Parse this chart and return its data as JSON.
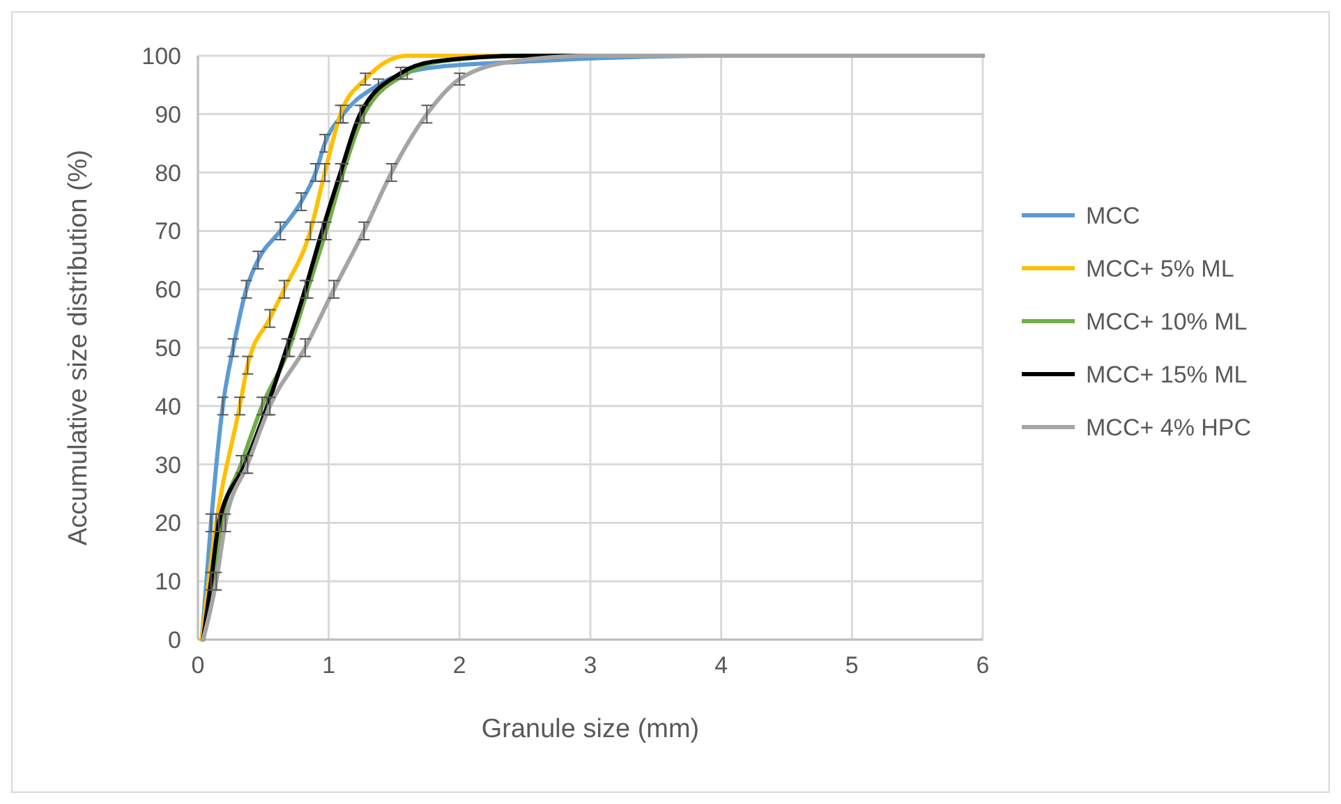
{
  "chart_data": {
    "type": "line",
    "xlabel": "Granule size (mm)",
    "ylabel": "Accumulative size distribution (%)",
    "xlim": [
      0,
      6
    ],
    "xticks": [
      0,
      1,
      2,
      3,
      4,
      5,
      6
    ],
    "ylim": [
      0,
      100
    ],
    "yticks": [
      0,
      10,
      20,
      30,
      40,
      50,
      60,
      70,
      80,
      90,
      100
    ],
    "grid": true,
    "legend": "right",
    "marker": "none",
    "line_style": "solid",
    "series": [
      {
        "name": "MCC",
        "color": "#5b9bd5",
        "x": [
          0.03,
          0.1,
          0.19,
          0.27,
          0.37,
          0.46,
          0.63,
          0.79,
          0.9,
          0.97,
          1.11,
          1.38,
          1.8,
          2.5,
          4,
          6
        ],
        "values": [
          0,
          20,
          40,
          50,
          60,
          65,
          70,
          75,
          80,
          85,
          90,
          95,
          98,
          99,
          100,
          100
        ],
        "errors": [
          null,
          1.5,
          1.5,
          1.5,
          1.5,
          1.5,
          1.5,
          1.5,
          1.5,
          1.5,
          1.5,
          1,
          null,
          null,
          null,
          null
        ]
      },
      {
        "name": "MCC+ 5% ML",
        "color": "#ffc000",
        "x": [
          0.03,
          0.14,
          0.32,
          0.38,
          0.55,
          0.66,
          0.86,
          0.97,
          1.09,
          1.28,
          1.6,
          6
        ],
        "values": [
          0,
          20,
          40,
          47,
          55,
          60,
          70,
          80,
          90,
          96,
          100,
          100
        ],
        "errors": [
          null,
          1.5,
          1.5,
          1.5,
          1.5,
          1.5,
          1.5,
          1.5,
          1.5,
          1,
          null,
          null
        ]
      },
      {
        "name": "MCC+ 10% ML",
        "color": "#70ad47",
        "x": [
          0.04,
          0.12,
          0.18,
          0.33,
          0.49,
          0.7,
          0.84,
          0.98,
          1.11,
          1.27,
          1.6,
          1.85,
          2.5,
          6
        ],
        "values": [
          0,
          10,
          20,
          30,
          40,
          50,
          60,
          70,
          80,
          90,
          97,
          99,
          100,
          100
        ],
        "errors": [
          null,
          1.5,
          1.5,
          1.5,
          1.5,
          1.5,
          1.5,
          1.5,
          1.5,
          1.5,
          1,
          null,
          null,
          null
        ]
      },
      {
        "name": "MCC+ 15% ML",
        "color": "#000000",
        "x": [
          0.04,
          0.1,
          0.16,
          0.36,
          0.53,
          0.68,
          0.82,
          0.95,
          1.09,
          1.24,
          1.55,
          1.8,
          2.5,
          6
        ],
        "values": [
          0,
          10,
          20,
          30,
          40,
          50,
          60,
          70,
          80,
          90,
          97,
          99,
          100,
          100
        ],
        "errors": [
          null,
          1.5,
          1.5,
          1.5,
          1.5,
          1.5,
          1.5,
          1.5,
          1.5,
          1.5,
          1,
          null,
          null,
          null
        ]
      },
      {
        "name": "MCC+ 4% HPC",
        "color": "#a5a5a5",
        "x": [
          0.04,
          0.14,
          0.21,
          0.38,
          0.55,
          0.82,
          1.04,
          1.27,
          1.48,
          1.75,
          2.0,
          2.4,
          3.0,
          6
        ],
        "values": [
          0,
          10,
          20,
          30,
          40,
          50,
          60,
          70,
          80,
          90,
          96,
          99,
          100,
          100
        ],
        "errors": [
          null,
          1.5,
          1.5,
          1.5,
          1.5,
          1.5,
          1.5,
          1.5,
          1.5,
          1.5,
          1,
          null,
          null,
          null
        ]
      }
    ]
  }
}
